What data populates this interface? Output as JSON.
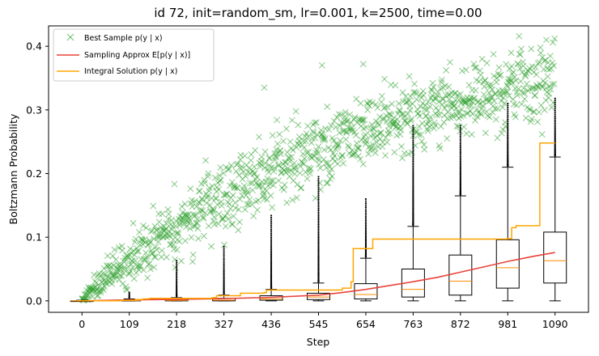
{
  "chart_data": {
    "type": "scatter",
    "title": "id 72, init=random_sm, lr=0.001, k=2500, time=0.00",
    "xlabel": "Step",
    "ylabel": "Boltzmann Probability",
    "xlim": [
      -77,
      1167
    ],
    "ylim": [
      -0.018,
      0.432
    ],
    "xticks": [
      0,
      109,
      218,
      327,
      436,
      545,
      654,
      763,
      872,
      981,
      1090
    ],
    "yticks": [
      0.0,
      0.1,
      0.2,
      0.3,
      0.4
    ],
    "ytick_labels": [
      "0.0",
      "0.1",
      "0.2",
      "0.3",
      "0.4"
    ],
    "grid": false,
    "legend_position": "top-left",
    "legend": [
      {
        "label": "Best Sample p(y | x)",
        "color": "#2ca02c",
        "marker": "x"
      },
      {
        "label": "Sampling Approx E[p(y | x)]",
        "color": "#e8443a",
        "marker": "line"
      },
      {
        "label": "Integral Solution p(y | x)",
        "color": "#ffa500",
        "marker": "line"
      }
    ],
    "series": [
      {
        "name": "Best Sample p(y | x)",
        "kind": "scatter",
        "color": "#2ca02c",
        "trend": {
          "x": [
            0,
            109,
            218,
            327,
            436,
            545,
            654,
            763,
            872,
            981,
            1090
          ],
          "y": [
            0.003,
            0.065,
            0.12,
            0.165,
            0.205,
            0.24,
            0.262,
            0.285,
            0.31,
            0.33,
            0.35
          ]
        },
        "spread": 0.028,
        "n_points": 1090,
        "outliers": [
          {
            "x": 1070,
            "y": 0.41
          },
          {
            "x": 553,
            "y": 0.37
          },
          {
            "x": 648,
            "y": 0.372
          },
          {
            "x": 420,
            "y": 0.335
          }
        ]
      },
      {
        "name": "Sampling Approx E[p(y | x)]",
        "kind": "line",
        "color": "#e8443a",
        "x": [
          0,
          109,
          218,
          327,
          436,
          545,
          600,
          654,
          700,
          763,
          820,
          872,
          930,
          981,
          1040,
          1090
        ],
        "y": [
          0.0,
          0.0015,
          0.0025,
          0.0035,
          0.0055,
          0.009,
          0.013,
          0.018,
          0.023,
          0.03,
          0.037,
          0.045,
          0.054,
          0.062,
          0.07,
          0.076
        ]
      },
      {
        "name": "Integral Solution p(y | x)",
        "kind": "step",
        "color": "#ffa500",
        "x": [
          -12,
          90,
          125,
          140,
          155,
          300,
          310,
          365,
          420,
          425,
          530,
          552,
          600,
          620,
          625,
          665,
          670,
          700,
          750,
          780,
          850,
          880,
          950,
          970,
          980,
          990,
          1000,
          1040,
          1055,
          1060,
          1090
        ],
        "y": [
          0.0,
          0.001,
          0.002,
          0.003,
          0.004,
          0.005,
          0.008,
          0.012,
          0.013,
          0.017,
          0.017,
          0.017,
          0.02,
          0.03,
          0.082,
          0.082,
          0.097,
          0.097,
          0.097,
          0.097,
          0.097,
          0.097,
          0.097,
          0.097,
          0.098,
          0.115,
          0.118,
          0.118,
          0.248,
          0.248,
          0.248
        ]
      }
    ],
    "boxplots": [
      {
        "x": 0,
        "q1": 0.0,
        "median": 0.0,
        "q3": 0.0,
        "whisker_low": 0.0,
        "whisker_high": 0.001,
        "flier_max": 0.002
      },
      {
        "x": 109,
        "q1": 0.0,
        "median": 0.0005,
        "q3": 0.001,
        "whisker_low": 0.0,
        "whisker_high": 0.003,
        "flier_max": 0.013
      },
      {
        "x": 218,
        "q1": 0.0,
        "median": 0.0008,
        "q3": 0.002,
        "whisker_low": 0.0,
        "whisker_high": 0.005,
        "flier_max": 0.063
      },
      {
        "x": 327,
        "q1": 0.0,
        "median": 0.001,
        "q3": 0.004,
        "whisker_low": 0.0,
        "whisker_high": 0.009,
        "flier_max": 0.085
      },
      {
        "x": 436,
        "q1": 0.001,
        "median": 0.003,
        "q3": 0.008,
        "whisker_low": 0.0,
        "whisker_high": 0.018,
        "flier_max": 0.134
      },
      {
        "x": 545,
        "q1": 0.002,
        "median": 0.006,
        "q3": 0.012,
        "whisker_low": 0.0,
        "whisker_high": 0.028,
        "flier_max": 0.195
      },
      {
        "x": 654,
        "q1": 0.003,
        "median": 0.01,
        "q3": 0.027,
        "whisker_low": 0.0,
        "whisker_high": 0.067,
        "flier_max": 0.16
      },
      {
        "x": 763,
        "q1": 0.006,
        "median": 0.018,
        "q3": 0.05,
        "whisker_low": 0.0,
        "whisker_high": 0.117,
        "flier_max": 0.275
      },
      {
        "x": 872,
        "q1": 0.009,
        "median": 0.031,
        "q3": 0.072,
        "whisker_low": 0.0,
        "whisker_high": 0.165,
        "flier_max": 0.275
      },
      {
        "x": 981,
        "q1": 0.02,
        "median": 0.052,
        "q3": 0.096,
        "whisker_low": 0.0,
        "whisker_high": 0.21,
        "flier_max": 0.31
      },
      {
        "x": 1090,
        "q1": 0.028,
        "median": 0.063,
        "q3": 0.108,
        "whisker_low": 0.0,
        "whisker_high": 0.226,
        "flier_max": 0.318
      }
    ]
  }
}
